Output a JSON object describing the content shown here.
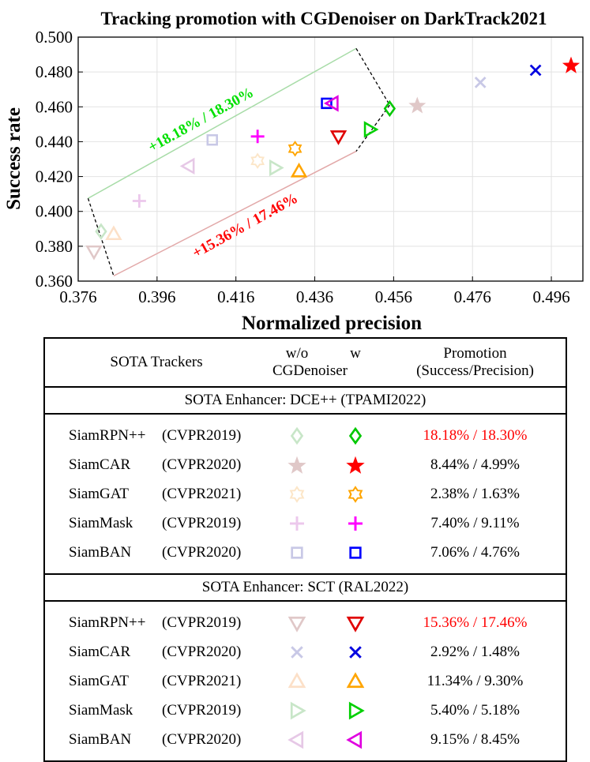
{
  "chart_data": {
    "type": "scatter",
    "title": "Tracking promotion with CGDenoiser on DarkTrack2021",
    "xlabel": "Normalized precision",
    "ylabel": "Success rate",
    "xlim": [
      0.376,
      0.504
    ],
    "ylim": [
      0.36,
      0.5
    ],
    "xticks": [
      "0.376",
      "0.396",
      "0.416",
      "0.436",
      "0.456",
      "0.476",
      "0.496"
    ],
    "yticks": [
      "0.360",
      "0.380",
      "0.400",
      "0.420",
      "0.440",
      "0.460",
      "0.480",
      "0.500"
    ],
    "grid": true,
    "annotations": [
      {
        "text": "+18.18% / 18.30%",
        "color": "#00e000"
      },
      {
        "text": "+15.36% / 17.46%",
        "color": "#ff0000"
      }
    ],
    "series": [
      {
        "name": "SiamRPN++ w/o (DCE++)",
        "marker": "diamond",
        "color": "#c8e6c8",
        "x": 0.3818,
        "y": 0.3885
      },
      {
        "name": "SiamRPN++ w (DCE++)",
        "marker": "diamond",
        "color": "#00c800",
        "x": 0.455,
        "y": 0.459
      },
      {
        "name": "SiamCAR w/o (DCE++)",
        "marker": "star",
        "color": "#e0c8c8",
        "x": 0.462,
        "y": 0.461
      },
      {
        "name": "SiamCAR w (DCE++)",
        "marker": "star",
        "color": "#ff0000",
        "x": 0.501,
        "y": 0.484
      },
      {
        "name": "SiamGAT w/o (DCE++)",
        "marker": "hexagram",
        "color": "#fce6c8",
        "x": 0.4215,
        "y": 0.429
      },
      {
        "name": "SiamGAT w (DCE++)",
        "marker": "hexagram",
        "color": "#ffa500",
        "x": 0.431,
        "y": 0.436
      },
      {
        "name": "SiamMask w/o (DCE++)",
        "marker": "plus",
        "color": "#ecc8ec",
        "x": 0.3915,
        "y": 0.406
      },
      {
        "name": "SiamMask w (DCE++)",
        "marker": "plus",
        "color": "#ff00ff",
        "x": 0.4215,
        "y": 0.443
      },
      {
        "name": "SiamBAN w/o (DCE++)",
        "marker": "square",
        "color": "#c8c8e6",
        "x": 0.41,
        "y": 0.441
      },
      {
        "name": "SiamBAN w (DCE++)",
        "marker": "square",
        "color": "#0000ff",
        "x": 0.439,
        "y": 0.462
      },
      {
        "name": "SiamRPN++ w/o (SCT)",
        "marker": "triangle-down",
        "color": "#e0c8c8",
        "x": 0.38,
        "y": 0.377
      },
      {
        "name": "SiamRPN++ w (SCT)",
        "marker": "triangle-down",
        "color": "#e00000",
        "x": 0.442,
        "y": 0.443
      },
      {
        "name": "SiamCAR w/o (SCT)",
        "marker": "x",
        "color": "#c8c8e6",
        "x": 0.478,
        "y": 0.474
      },
      {
        "name": "SiamCAR w (SCT)",
        "marker": "x",
        "color": "#0000e0",
        "x": 0.492,
        "y": 0.481
      },
      {
        "name": "SiamGAT w/o (SCT)",
        "marker": "triangle-up",
        "color": "#fce0c8",
        "x": 0.385,
        "y": 0.387
      },
      {
        "name": "SiamGAT w (SCT)",
        "marker": "triangle-up",
        "color": "#ffa500",
        "x": 0.432,
        "y": 0.423
      },
      {
        "name": "SiamMask w/o (SCT)",
        "marker": "triangle-right",
        "color": "#c8e6c8",
        "x": 0.426,
        "y": 0.425
      },
      {
        "name": "SiamMask w (SCT)",
        "marker": "triangle-right",
        "color": "#00d000",
        "x": 0.45,
        "y": 0.447
      },
      {
        "name": "SiamBAN w/o (SCT)",
        "marker": "triangle-left",
        "color": "#e6c8e6",
        "x": 0.404,
        "y": 0.426
      },
      {
        "name": "SiamBAN w (SCT)",
        "marker": "triangle-left",
        "color": "#e000e0",
        "x": 0.4405,
        "y": 0.462
      }
    ]
  },
  "table": {
    "header": {
      "trackers": "SOTA Trackers",
      "wo": "w/o",
      "w": "w",
      "denoiser": "CGDenoiser",
      "promotion": "Promotion",
      "promotion_sub": "(Success/Precision)"
    },
    "sections": [
      {
        "title": "SOTA Enhancer:  DCE++ (TPAMI2022)",
        "rows": [
          {
            "name": "SiamRPN++",
            "venue": "(CVPR2019)",
            "marker": "diamond",
            "c_wo": "#c8e6c8",
            "c_w": "#00c800",
            "success": "18.18%",
            "precision": "18.30%",
            "highlight": true
          },
          {
            "name": "SiamCAR",
            "venue": "(CVPR2020)",
            "marker": "star",
            "c_wo": "#e0c8c8",
            "c_w": "#ff0000",
            "success": "8.44%",
            "precision": "4.99%",
            "highlight": false
          },
          {
            "name": "SiamGAT",
            "venue": "(CVPR2021)",
            "marker": "hexagram",
            "c_wo": "#fce6c8",
            "c_w": "#ffa500",
            "success": "2.38%",
            "precision": "1.63%",
            "highlight": false
          },
          {
            "name": "SiamMask",
            "venue": "(CVPR2019)",
            "marker": "plus",
            "c_wo": "#ecc8ec",
            "c_w": "#ff00ff",
            "success": "7.40%",
            "precision": "9.11%",
            "highlight": false
          },
          {
            "name": "SiamBAN",
            "venue": "(CVPR2020)",
            "marker": "square",
            "c_wo": "#c8c8e6",
            "c_w": "#0000ff",
            "success": "7.06%",
            "precision": "4.76%",
            "highlight": false
          }
        ]
      },
      {
        "title": "SOTA Enhancer:  SCT (RAL2022)",
        "rows": [
          {
            "name": "SiamRPN++",
            "venue": "(CVPR2019)",
            "marker": "triangle-down",
            "c_wo": "#e0c8c8",
            "c_w": "#e00000",
            "success": "15.36%",
            "precision": "17.46%",
            "highlight": true
          },
          {
            "name": "SiamCAR",
            "venue": "(CVPR2020)",
            "marker": "x",
            "c_wo": "#c8c8e6",
            "c_w": "#0000e0",
            "success": "2.92%",
            "precision": "1.48%",
            "highlight": false
          },
          {
            "name": "SiamGAT",
            "venue": "(CVPR2021)",
            "marker": "triangle-up",
            "c_wo": "#fce0c8",
            "c_w": "#ffa500",
            "success": "11.34%",
            "precision": "9.30%",
            "highlight": false
          },
          {
            "name": "SiamMask",
            "venue": "(CVPR2019)",
            "marker": "triangle-right",
            "c_wo": "#c8e6c8",
            "c_w": "#00d000",
            "success": "5.40%",
            "precision": "5.18%",
            "highlight": false
          },
          {
            "name": "SiamBAN",
            "venue": "(CVPR2020)",
            "marker": "triangle-left",
            "c_wo": "#e6c8e6",
            "c_w": "#e000e0",
            "success": "9.15%",
            "precision": "8.45%",
            "highlight": false
          }
        ]
      }
    ]
  }
}
